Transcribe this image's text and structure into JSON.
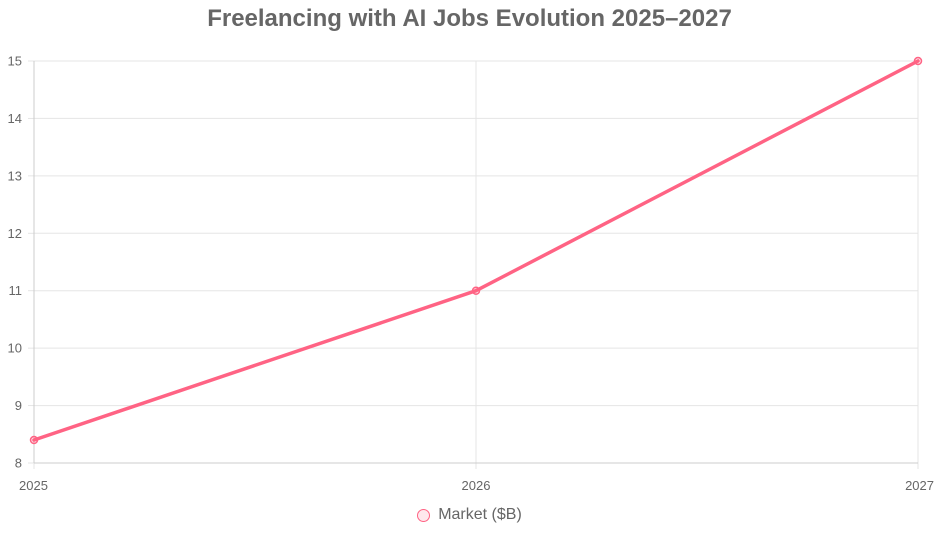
{
  "chart_data": {
    "type": "line",
    "title": "Freelancing with AI Jobs Evolution 2025–2027",
    "categories": [
      "2025",
      "2026",
      "2027"
    ],
    "series": [
      {
        "name": "Market ($B)",
        "values": [
          8.4,
          11,
          15
        ],
        "color": "#ff6384"
      }
    ],
    "xlabel": "",
    "ylabel": "",
    "ylim": [
      8,
      15
    ],
    "yticks": [
      8,
      9,
      10,
      11,
      12,
      13,
      14,
      15
    ],
    "grid": true,
    "legend_position": "bottom"
  },
  "colors": {
    "line": "#ff6384",
    "grid": "#e5e5e5",
    "axis": "#cccccc",
    "text": "#666666"
  }
}
